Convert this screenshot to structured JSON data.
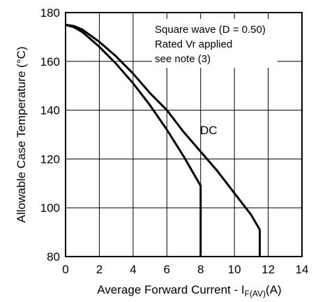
{
  "chart_data": {
    "type": "line",
    "title": "",
    "xlabel_main": "Average Forward Current - I",
    "xlabel_sub_f": "F",
    "xlabel_sub_av": "(AV)",
    "xlabel_unit": "(A)",
    "ylabel": "Allowable Case Temperature (°C)",
    "xlim": [
      0,
      14
    ],
    "ylim": [
      80,
      180
    ],
    "xticks": [
      0,
      2,
      4,
      6,
      8,
      10,
      12,
      14
    ],
    "yticks": [
      80,
      100,
      120,
      140,
      160,
      180
    ],
    "grid": true,
    "annotations": [
      "Square wave (D = 0.50)",
      "Rated Vr  applied",
      "see note (3)"
    ],
    "series": [
      {
        "name": "Square wave (D = 0.50)",
        "x": [
          0,
          0.5,
          1,
          2,
          3,
          4,
          5,
          6,
          7,
          8,
          8,
          8
        ],
        "y": [
          175,
          174,
          172,
          166,
          159,
          151,
          142,
          132,
          121,
          109,
          80,
          80
        ]
      },
      {
        "name": "DC",
        "x": [
          0,
          0.5,
          1,
          2,
          3,
          4,
          5,
          6,
          7,
          8,
          9,
          10,
          11,
          11.5,
          11.5
        ],
        "y": [
          175,
          174.5,
          173,
          168,
          162,
          155,
          147,
          140,
          131,
          123,
          115,
          106,
          97,
          91,
          80
        ]
      }
    ]
  }
}
